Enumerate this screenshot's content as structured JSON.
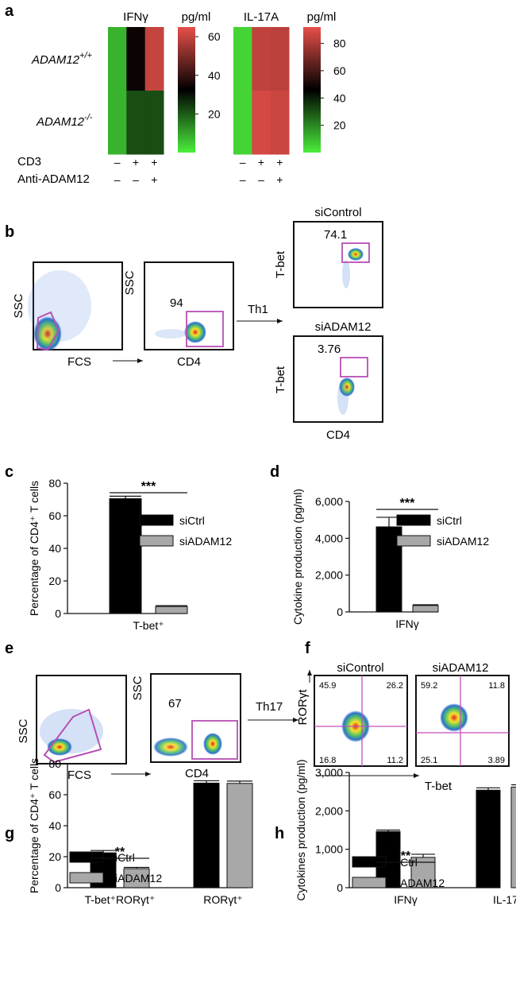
{
  "panels": {
    "a": {
      "label": "a",
      "row_labels": [
        "ADAM12",
        "ADAM12"
      ],
      "row_label_sup": [
        "+/+",
        "-/-"
      ],
      "treat_names": [
        "CD3",
        "Anti-ADAM12"
      ],
      "cd3_signs": [
        "–",
        "+",
        "+"
      ],
      "anti_signs": [
        "–",
        "–",
        "+"
      ],
      "colorbar_unit": "pg/ml"
    },
    "b": {
      "label": "b",
      "plot1_xlabel": "FCS",
      "plot1_ylabel": "SSC",
      "plot2_xlabel": "CD4",
      "plot2_ylabel": "SSC",
      "plot2_gate": "94",
      "arrow_label": "Th1",
      "ctrl_title": "siControl",
      "ctrl_gate": "74.1",
      "ctrl_ylabel": "T-bet",
      "si_title": "siADAM12",
      "si_gate": "3.76",
      "si_ylabel": "T-bet",
      "si_xlabel": "CD4"
    },
    "e": {
      "label": "e",
      "plot1_xlabel": "FCS",
      "plot1_ylabel": "SSC",
      "plot2_xlabel": "CD4",
      "plot2_ylabel": "SSC",
      "plot2_gate": "67",
      "arrow_label": "Th17"
    },
    "f": {
      "label": "f",
      "ctrl_title": "siControl",
      "si_title": "siADAM12",
      "ctrl_quadrants": [
        "45.9",
        "26.2",
        "16.8",
        "11.2"
      ],
      "si_quadrants": [
        "59.2",
        "11.8",
        "25.1",
        "3.89"
      ],
      "ylabel": "RORγt",
      "xlabel": "T-bet"
    }
  },
  "chart_data": [
    {
      "panel": "a",
      "type": "heatmap",
      "title": "IFNγ",
      "rows": [
        "ADAM12+/+",
        "ADAM12-/-"
      ],
      "values": [
        [
          8,
          34,
          60
        ],
        [
          8,
          22,
          22
        ]
      ],
      "colorbar": {
        "label": "pg/ml",
        "ticks": [
          20,
          40,
          60
        ],
        "range": [
          0,
          65
        ]
      }
    },
    {
      "panel": "a",
      "type": "heatmap",
      "title": "IL-17A",
      "rows": [
        "ADAM12+/+",
        "ADAM12-/-"
      ],
      "values": [
        [
          5,
          84,
          83
        ],
        [
          5,
          88,
          86
        ]
      ],
      "colorbar": {
        "label": "pg/ml",
        "ticks": [
          20,
          40,
          60,
          80
        ],
        "range": [
          0,
          92
        ]
      }
    },
    {
      "panel": "c",
      "type": "bar",
      "ylabel": "Percentage of CD4⁺ T cells",
      "categories": [
        "T-bet⁺"
      ],
      "ylim": [
        0,
        80
      ],
      "yticks": [
        0,
        20,
        40,
        60,
        80
      ],
      "ytick_labels": [
        "0",
        "20",
        "40",
        "60",
        "80"
      ],
      "series": [
        {
          "name": "siCtrl",
          "values": [
            70.5
          ],
          "errors": [
            1.5
          ],
          "color": "#000000"
        },
        {
          "name": "siADAM12",
          "values": [
            4.3
          ],
          "errors": [
            0.5
          ],
          "color": "#a8a8a8"
        }
      ],
      "significance": [
        {
          "category": 0,
          "label": "***"
        }
      ]
    },
    {
      "panel": "d",
      "type": "bar",
      "ylabel": "Cytokine production (pg/ml)",
      "categories": [
        "IFNγ"
      ],
      "ylim": [
        0,
        6000
      ],
      "yticks": [
        0,
        2000,
        4000,
        6000
      ],
      "ytick_labels": [
        "0",
        "2,000",
        "4,000",
        "6,000"
      ],
      "series": [
        {
          "name": "siCtrl",
          "values": [
            4620
          ],
          "errors": [
            520
          ],
          "color": "#000000"
        },
        {
          "name": "siADAM12",
          "values": [
            350
          ],
          "errors": [
            40
          ],
          "color": "#a8a8a8"
        }
      ],
      "significance": [
        {
          "category": 0,
          "label": "***"
        }
      ]
    },
    {
      "panel": "g",
      "type": "bar",
      "ylabel": "Percentage of CD4⁺ T cells",
      "categories": [
        "T-bet⁺RORγt⁺",
        "RORγt⁺"
      ],
      "ylim": [
        0,
        80
      ],
      "yticks": [
        0,
        20,
        40,
        60,
        80
      ],
      "ytick_labels": [
        "0",
        "20",
        "40",
        "60",
        "80"
      ],
      "series": [
        {
          "name": "siCtrl",
          "values": [
            22.5,
            67.5
          ],
          "errors": [
            1.5,
            1.5
          ],
          "color": "#000000"
        },
        {
          "name": "siADAM12",
          "values": [
            12.3,
            67.3
          ],
          "errors": [
            0.8,
            1.5
          ],
          "color": "#a8a8a8"
        }
      ],
      "significance": [
        {
          "category": 0,
          "label": "**"
        }
      ]
    },
    {
      "panel": "h",
      "type": "bar",
      "ylabel": "Cytokines production (pg/ml)",
      "categories": [
        "IFNγ",
        "IL-17"
      ],
      "ylim": [
        0,
        3000
      ],
      "yticks": [
        0,
        1000,
        2000,
        3000
      ],
      "ytick_labels": [
        "0",
        "1,000",
        "2,000",
        "3,000"
      ],
      "series": [
        {
          "name": "siCtrl",
          "values": [
            1460,
            2540
          ],
          "errors": [
            40,
            60
          ],
          "color": "#000000"
        },
        {
          "name": "siADAM12",
          "values": [
            790,
            2620
          ],
          "errors": [
            80,
            60
          ],
          "color": "#a8a8a8"
        }
      ],
      "significance": [
        {
          "category": 0,
          "label": "**"
        }
      ]
    }
  ]
}
